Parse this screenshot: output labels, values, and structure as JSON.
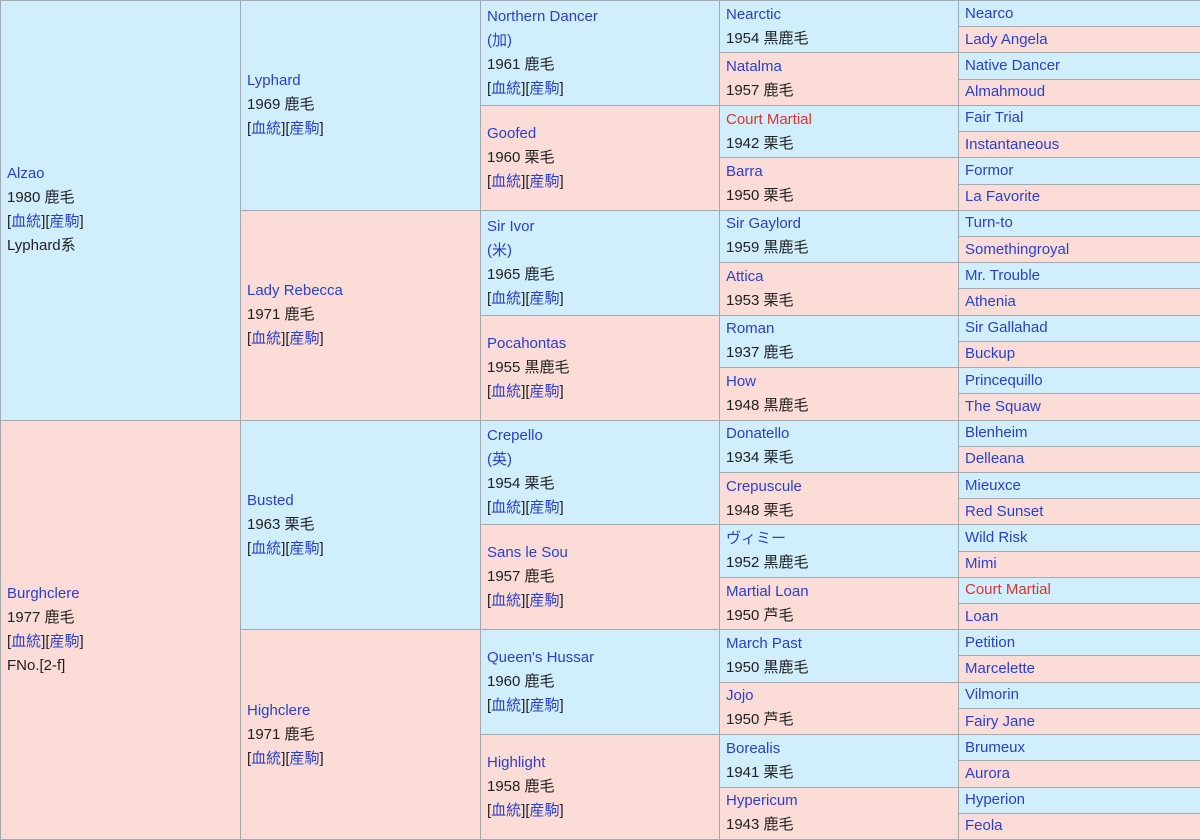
{
  "link_pedigree": "血統",
  "link_progeny": "産駒",
  "sire": {
    "name": "Alzao",
    "info": "1980 鹿毛",
    "extra": "Lyphard系"
  },
  "dam": {
    "name": "Burghclere",
    "info": "1977 鹿毛",
    "extra": "FNo.[2-f]"
  },
  "g2": {
    "ss": {
      "name": "Lyphard",
      "info": "1969 鹿毛"
    },
    "sd": {
      "name": "Lady Rebecca",
      "info": "1971 鹿毛"
    },
    "ds": {
      "name": "Busted",
      "info": "1963 栗毛"
    },
    "dd": {
      "name": "Highclere",
      "info": "1971 鹿毛"
    }
  },
  "g3": {
    "sss": {
      "name": "Northern Dancer",
      "country": "(加)",
      "info": "1961 鹿毛"
    },
    "ssd": {
      "name": "Goofed",
      "info": "1960 栗毛"
    },
    "sds": {
      "name": "Sir Ivor",
      "country": "(米)",
      "info": "1965 鹿毛"
    },
    "sdd": {
      "name": "Pocahontas",
      "info": "1955 黒鹿毛"
    },
    "dss": {
      "name": "Crepello",
      "country": "(英)",
      "info": "1954 栗毛"
    },
    "dsd": {
      "name": "Sans le Sou",
      "info": "1957 鹿毛"
    },
    "dds": {
      "name": "Queen's Hussar",
      "info": "1960 鹿毛"
    },
    "ddd": {
      "name": "Highlight",
      "info": "1958 鹿毛"
    }
  },
  "g4": [
    {
      "name": "Nearctic",
      "info": "1954 黒鹿毛"
    },
    {
      "name": "Natalma",
      "info": "1957 鹿毛"
    },
    {
      "name": "Court Martial",
      "info": "1942 栗毛"
    },
    {
      "name": "Barra",
      "info": "1950 栗毛"
    },
    {
      "name": "Sir Gaylord",
      "info": "1959 黒鹿毛"
    },
    {
      "name": "Attica",
      "info": "1953 栗毛"
    },
    {
      "name": "Roman",
      "info": "1937 鹿毛"
    },
    {
      "name": "How",
      "info": "1948 黒鹿毛"
    },
    {
      "name": "Donatello",
      "info": "1934 栗毛"
    },
    {
      "name": "Crepuscule",
      "info": "1948 栗毛"
    },
    {
      "name": "ヴィミー",
      "info": "1952 黒鹿毛"
    },
    {
      "name": "Martial Loan",
      "info": "1950 芦毛"
    },
    {
      "name": "March Past",
      "info": "1950 黒鹿毛"
    },
    {
      "name": "Jojo",
      "info": "1950 芦毛"
    },
    {
      "name": "Borealis",
      "info": "1941 栗毛"
    },
    {
      "name": "Hypericum",
      "info": "1943 鹿毛"
    }
  ],
  "g5": [
    "Nearco",
    "Lady Angela",
    "Native Dancer",
    "Almahmoud",
    "Fair Trial",
    "Instantaneous",
    "Formor",
    "La Favorite",
    "Turn-to",
    "Somethingroyal",
    "Mr. Trouble",
    "Athenia",
    "Sir Gallahad",
    "Buckup",
    "Princequillo",
    "The Squaw",
    "Blenheim",
    "Delleana",
    "Mieuxce",
    "Red Sunset",
    "Wild Risk",
    "Mimi",
    "Court Martial",
    "Loan",
    "Petition",
    "Marcelette",
    "Vilmorin",
    "Fairy Jane",
    "Brumeux",
    "Aurora",
    "Hyperion",
    "Feola"
  ],
  "colors": {
    "male_bg": "#d1eefc",
    "female_bg": "#fcdcd7",
    "link": "#2a3fcf",
    "link_red": "#d33"
  }
}
